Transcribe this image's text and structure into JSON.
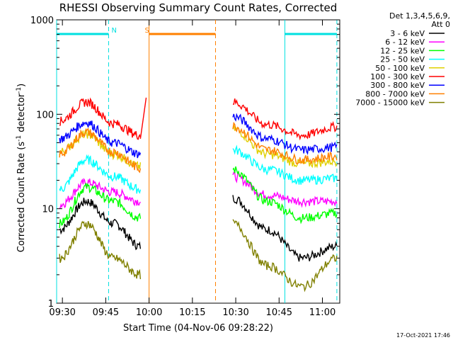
{
  "chart_data": {
    "type": "line",
    "title": "RHESSI Observing Summary Count Rates, Corrected",
    "xlabel": "Start Time (04-Nov-06 09:28:22)",
    "ylabel_main": "Corrected Count Rate (s",
    "ylabel_sup1": "-1",
    "ylabel_mid": " detector",
    "ylabel_sup2": "-1",
    "ylabel_end": ")",
    "y_scale": "log",
    "ylim": [
      1,
      1000
    ],
    "xlim": [
      "09:28",
      "11:06"
    ],
    "x_ticks": [
      "09:30",
      "09:45",
      "10:00",
      "10:15",
      "10:30",
      "10:45",
      "11:00"
    ],
    "y_ticks": [
      "1",
      "10",
      "100",
      "1000"
    ],
    "legend_header": [
      "Det 1,3,4,5,6,9,",
      "Att 0"
    ],
    "legend_position": "right",
    "stamp": "17-Oct-2021 17:46",
    "markers": [
      {
        "label": "N",
        "color": "#00e0e0",
        "bar": [
          "09:28",
          "09:46"
        ],
        "dashed_at": "09:46",
        "solid_at": "09:28"
      },
      {
        "label": "S",
        "color": "#ff8000",
        "bar": [
          "10:00",
          "10:23"
        ],
        "dashed_at": "10:23",
        "solid_at": "10:00"
      },
      {
        "label": "",
        "color": "#00e0e0",
        "bar": [
          "10:47",
          "11:05"
        ],
        "dashed_at": "11:05",
        "solid_at": "10:47"
      }
    ],
    "series": [
      {
        "name": "3 - 6 keV",
        "color": "#000000",
        "pre": [
          6,
          12,
          7,
          4
        ],
        "post": [
          13,
          6,
          3,
          4
        ]
      },
      {
        "name": "6 - 12 keV",
        "color": "#ff00ff",
        "pre": [
          11,
          19,
          15,
          12
        ],
        "post": [
          22,
          14,
          12,
          12
        ]
      },
      {
        "name": "12 - 25 keV",
        "color": "#00ff00",
        "pre": [
          7,
          17,
          12,
          8
        ],
        "post": [
          26,
          12,
          8,
          9
        ]
      },
      {
        "name": "25 - 50 keV",
        "color": "#00ffff",
        "pre": [
          16,
          33,
          22,
          16
        ],
        "post": [
          42,
          26,
          20,
          21
        ]
      },
      {
        "name": "50 - 100 keV",
        "color": "#e0d000",
        "pre": [
          40,
          62,
          38,
          28
        ],
        "post": [
          70,
          38,
          30,
          32
        ]
      },
      {
        "name": "100 - 300 keV",
        "color": "#ff0000",
        "pre": [
          85,
          135,
          80,
          60
        ],
        "post": [
          135,
          78,
          60,
          74
        ]
      },
      {
        "name": "300 - 800 keV",
        "color": "#0000ff",
        "pre": [
          55,
          82,
          50,
          38
        ],
        "post": [
          95,
          55,
          42,
          45
        ]
      },
      {
        "name": "800 - 7000 keV",
        "color": "#ff8000",
        "pre": [
          38,
          65,
          40,
          27
        ],
        "post": [
          75,
          42,
          33,
          36
        ]
      },
      {
        "name": "7000 - 15000 keV",
        "color": "#808000",
        "pre": [
          3,
          7,
          3,
          2
        ],
        "post": [
          7,
          2.5,
          1.5,
          3
        ]
      }
    ]
  }
}
